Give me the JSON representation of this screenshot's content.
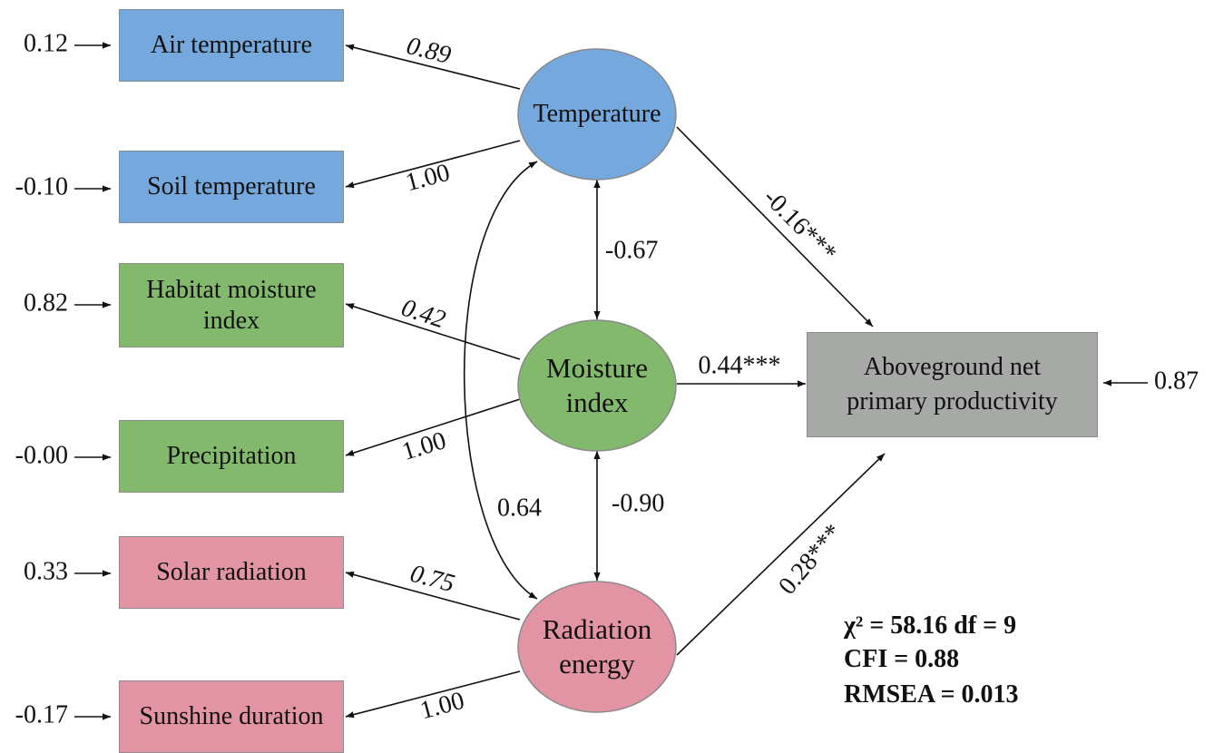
{
  "indicators": [
    {
      "label": "Air temperature",
      "error": "0.12",
      "loading": "0.89"
    },
    {
      "label": "Soil temperature",
      "error": "-0.10",
      "loading": "1.00"
    },
    {
      "label": "Habitat moisture index",
      "error": "0.82",
      "loading": "0.42"
    },
    {
      "label": "Precipitation",
      "error": "-0.00",
      "loading": "1.00"
    },
    {
      "label": "Solar radiation",
      "error": "0.33",
      "loading": "0.75"
    },
    {
      "label": "Sunshine duration",
      "error": "-0.17",
      "loading": "1.00"
    }
  ],
  "latents": [
    {
      "label": "Temperature"
    },
    {
      "label": "Moisture index"
    },
    {
      "label": "Radiation energy"
    }
  ],
  "correlations": {
    "temperature_moisture": "-0.67",
    "moisture_radiation": "-0.90",
    "temperature_radiation": "0.64"
  },
  "paths": {
    "temperature": "-0.16***",
    "moisture": "0.44***",
    "radiation": "0.28***"
  },
  "outcome": {
    "label": "Aboveground net primary productivity",
    "error": "0.87"
  },
  "fit": [
    "χ² = 58.16  df = 9",
    "CFI = 0.88",
    "RMSEA = 0.013"
  ]
}
